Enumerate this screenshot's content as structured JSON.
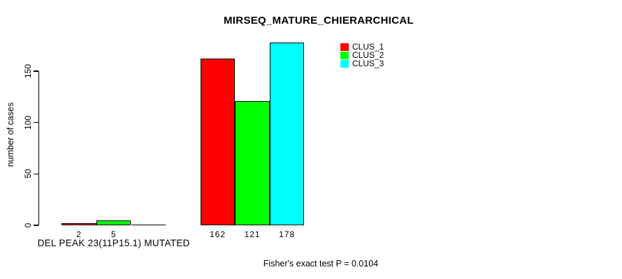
{
  "chart_data": {
    "type": "bar",
    "title": "MIRSEQ_MATURE_CHIERARCHICAL",
    "ylabel": "number of cases",
    "xlabel": "",
    "categories": [
      "DEL PEAK 23(11P15.1) MUTATED",
      ""
    ],
    "series": [
      {
        "name": "CLUS_1",
        "color": "#ff0000",
        "values": [
          2,
          162
        ]
      },
      {
        "name": "CLUS_2",
        "color": "#00ff00",
        "values": [
          5,
          121
        ]
      },
      {
        "name": "CLUS_3",
        "color": "#00ffff",
        "values": [
          0,
          178
        ]
      }
    ],
    "bar_value_labels_visible": [
      "2",
      "5",
      "162",
      "121",
      "178"
    ],
    "yticks": [
      0,
      50,
      100,
      150
    ],
    "ylim": [
      0,
      178
    ],
    "grid": false,
    "bar_outline_color": "#000000",
    "background_color": "#ffffff",
    "legend": {
      "position": "top-right",
      "entries": [
        "CLUS_1",
        "CLUS_2",
        "CLUS_3"
      ],
      "colors": [
        "#ff0000",
        "#00ff00",
        "#00ffff"
      ]
    },
    "annotation": "Fisher's exact test P = 0.0104"
  }
}
